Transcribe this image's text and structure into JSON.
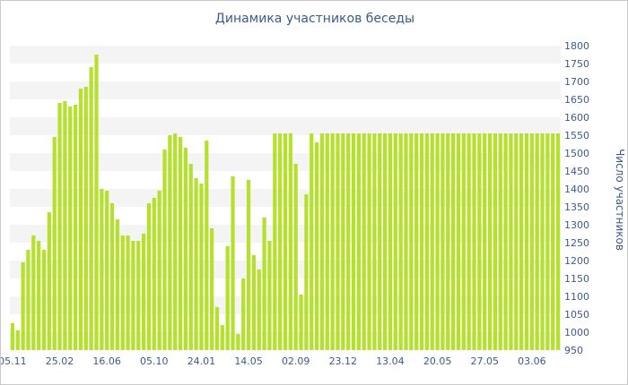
{
  "chart_data": {
    "type": "bar",
    "title": "Динамика участников беседы",
    "xlabel": "",
    "ylabel": "Число участников",
    "ylim": [
      950,
      1800
    ],
    "yticks": [
      950,
      1000,
      1050,
      1100,
      1150,
      1200,
      1250,
      1300,
      1350,
      1400,
      1450,
      1500,
      1550,
      1600,
      1650,
      1700,
      1750,
      1800
    ],
    "x_tick_labels": [
      "05.11",
      "25.02",
      "16.06",
      "05.10",
      "24.01",
      "14.05",
      "02.09",
      "23.12",
      "13.04",
      "20.05",
      "27.05",
      "03.06"
    ],
    "x_tick_bar_index": [
      0,
      9,
      18,
      27,
      36,
      45,
      54,
      63,
      72,
      81,
      90,
      99
    ],
    "y_axis_position": "right",
    "grid": "alternating horizontal bands",
    "bar_color": "#b5e02b",
    "values": [
      1025,
      1005,
      1195,
      1230,
      1270,
      1255,
      1230,
      1335,
      1545,
      1640,
      1645,
      1630,
      1635,
      1680,
      1685,
      1740,
      1775,
      1400,
      1395,
      1360,
      1315,
      1270,
      1270,
      1255,
      1255,
      1275,
      1360,
      1375,
      1395,
      1510,
      1550,
      1555,
      1545,
      1515,
      1470,
      1430,
      1415,
      1535,
      1290,
      1070,
      1020,
      1240,
      1435,
      995,
      1150,
      1425,
      1215,
      1175,
      1320,
      1255,
      1555,
      1555,
      1555,
      1555,
      1470,
      1105,
      1385,
      1555,
      1530,
      1555,
      1555,
      1555,
      1555,
      1555,
      1555,
      1555,
      1555,
      1555,
      1555,
      1555,
      1555,
      1555,
      1555,
      1555,
      1555,
      1555,
      1555,
      1555,
      1555,
      1555,
      1555,
      1555,
      1555,
      1555,
      1555,
      1555,
      1555,
      1555,
      1555,
      1555,
      1555,
      1555,
      1555,
      1555,
      1555,
      1555,
      1555,
      1555,
      1555,
      1555,
      1555,
      1555,
      1555,
      1555,
      1555
    ]
  }
}
